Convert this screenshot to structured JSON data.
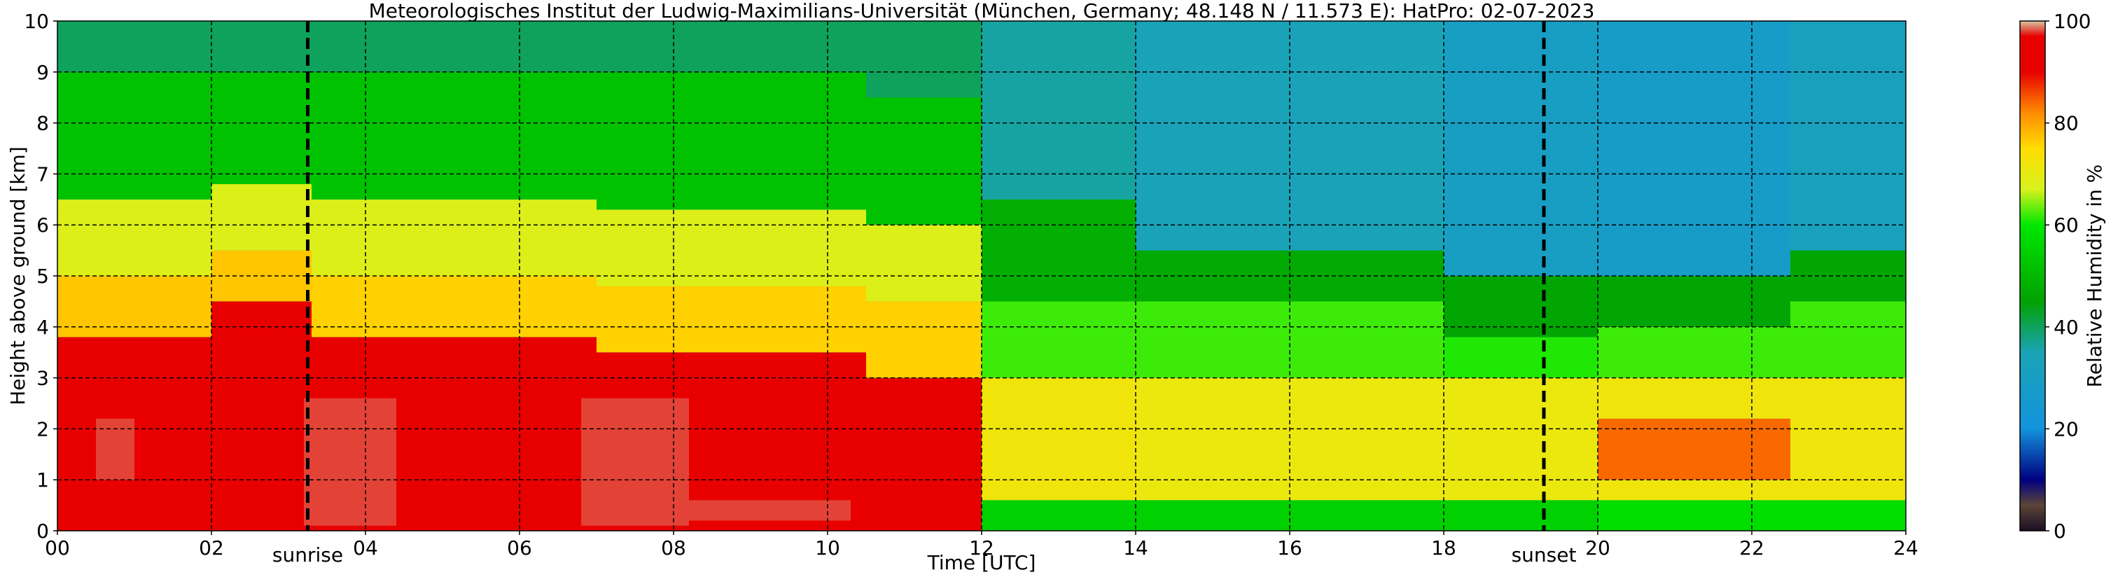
{
  "chart_data": {
    "type": "heatmap",
    "title": "Meteorologisches Institut der Ludwig-Maximilians-Universität (München, Germany; 48.148 N / 11.573 E):    HatPro: 02-07-2023",
    "xlabel": "Time [UTC]",
    "ylabel": "Height above ground [km]",
    "colorbar_label": "Relative Humidity in %",
    "xlim": [
      0,
      24
    ],
    "ylim": [
      0,
      10
    ],
    "x_ticks": [
      0,
      2,
      4,
      6,
      8,
      10,
      12,
      14,
      16,
      18,
      20,
      22,
      24
    ],
    "x_tick_labels": [
      "00",
      "02",
      "04",
      "06",
      "08",
      "10",
      "12",
      "14",
      "16",
      "18",
      "20",
      "22",
      "24"
    ],
    "y_ticks": [
      0,
      1,
      2,
      3,
      4,
      5,
      6,
      7,
      8,
      9,
      10
    ],
    "y_tick_labels": [
      "0",
      "1",
      "2",
      "3",
      "4",
      "5",
      "6",
      "7",
      "8",
      "9",
      "10"
    ],
    "colorbar_ticks": [
      0,
      20,
      40,
      60,
      80,
      100
    ],
    "colorbar_tick_labels": [
      "0",
      "20",
      "40",
      "60",
      "80",
      "100"
    ],
    "colorbar_stops": [
      {
        "value": 0,
        "color": "#1a0f24"
      },
      {
        "value": 5,
        "color": "#5c4538"
      },
      {
        "value": 10,
        "color": "#000080"
      },
      {
        "value": 20,
        "color": "#1393dd"
      },
      {
        "value": 35,
        "color": "#1aa3b5"
      },
      {
        "value": 45,
        "color": "#02a102"
      },
      {
        "value": 60,
        "color": "#00e800"
      },
      {
        "value": 67,
        "color": "#d7f21c"
      },
      {
        "value": 75,
        "color": "#ffdd00"
      },
      {
        "value": 82,
        "color": "#ff8c00"
      },
      {
        "value": 90,
        "color": "#e80000"
      },
      {
        "value": 97,
        "color": "#e80000"
      },
      {
        "value": 100,
        "color": "#d8c8a4"
      }
    ],
    "grid": true,
    "markers": [
      {
        "label": "sunrise",
        "time": 3.25
      },
      {
        "label": "sunset",
        "time": 19.3
      }
    ],
    "humidity_profile_segments": [
      {
        "from": 0.0,
        "to": 2.0,
        "layers": [
          [
            0,
            3.8,
            91
          ],
          [
            3.8,
            5.0,
            77
          ],
          [
            5.0,
            6.5,
            68
          ],
          [
            6.5,
            9.0,
            52
          ],
          [
            9.0,
            10,
            40
          ]
        ]
      },
      {
        "from": 2.0,
        "to": 3.3,
        "layers": [
          [
            0,
            4.5,
            91
          ],
          [
            4.5,
            5.5,
            77
          ],
          [
            5.5,
            6.8,
            68
          ],
          [
            6.8,
            9.0,
            52
          ],
          [
            9.0,
            10,
            40
          ]
        ]
      },
      {
        "from": 3.3,
        "to": 7.0,
        "layers": [
          [
            0,
            3.8,
            91
          ],
          [
            3.8,
            5.0,
            76
          ],
          [
            5.0,
            6.5,
            68
          ],
          [
            6.5,
            9.0,
            52
          ],
          [
            9.0,
            10,
            40
          ]
        ]
      },
      {
        "from": 7.0,
        "to": 10.5,
        "layers": [
          [
            0,
            3.5,
            91
          ],
          [
            3.5,
            4.8,
            76
          ],
          [
            4.8,
            6.3,
            68
          ],
          [
            6.3,
            9.0,
            52
          ],
          [
            9.0,
            10,
            40
          ]
        ]
      },
      {
        "from": 10.5,
        "to": 12.0,
        "layers": [
          [
            0,
            3.0,
            90
          ],
          [
            3.0,
            4.5,
            76
          ],
          [
            4.5,
            6.0,
            68
          ],
          [
            6.0,
            8.5,
            52
          ],
          [
            8.5,
            10,
            40
          ]
        ]
      },
      {
        "from": 12.0,
        "to": 14.0,
        "layers": [
          [
            0,
            0.6,
            55
          ],
          [
            0.6,
            3.0,
            72
          ],
          [
            3.0,
            4.5,
            62
          ],
          [
            4.5,
            6.5,
            48
          ],
          [
            6.5,
            10,
            36
          ]
        ]
      },
      {
        "from": 14.0,
        "to": 18.0,
        "layers": [
          [
            0,
            0.6,
            55
          ],
          [
            0.6,
            3.0,
            71
          ],
          [
            3.0,
            4.5,
            62
          ],
          [
            4.5,
            5.5,
            47
          ],
          [
            5.5,
            10,
            34
          ]
        ]
      },
      {
        "from": 18.0,
        "to": 20.0,
        "layers": [
          [
            0,
            0.6,
            55
          ],
          [
            0.6,
            3.0,
            71
          ],
          [
            3.0,
            3.8,
            61
          ],
          [
            3.8,
            5.0,
            46
          ],
          [
            5.0,
            10,
            30
          ]
        ]
      },
      {
        "from": 20.0,
        "to": 22.5,
        "layers": [
          [
            0,
            0.6,
            58
          ],
          [
            0.6,
            1.0,
            72
          ],
          [
            1.0,
            2.2,
            84
          ],
          [
            2.2,
            3.0,
            72
          ],
          [
            3.0,
            4.0,
            62
          ],
          [
            4.0,
            5.0,
            46
          ],
          [
            5.0,
            10,
            28
          ]
        ]
      },
      {
        "from": 22.5,
        "to": 24.0,
        "layers": [
          [
            0,
            0.6,
            58
          ],
          [
            0.6,
            3.0,
            72
          ],
          [
            3.0,
            4.5,
            62
          ],
          [
            4.5,
            5.5,
            46
          ],
          [
            5.5,
            10,
            32
          ]
        ]
      }
    ],
    "saturated_patches": [
      {
        "from": 0.5,
        "to": 1.0,
        "bottom": 1.0,
        "top": 2.2,
        "value": 98
      },
      {
        "from": 3.2,
        "to": 4.4,
        "bottom": 0.1,
        "top": 2.6,
        "value": 98
      },
      {
        "from": 6.8,
        "to": 8.2,
        "bottom": 0.1,
        "top": 2.6,
        "value": 98
      },
      {
        "from": 8.2,
        "to": 10.3,
        "bottom": 0.2,
        "top": 0.6,
        "value": 98
      }
    ]
  }
}
